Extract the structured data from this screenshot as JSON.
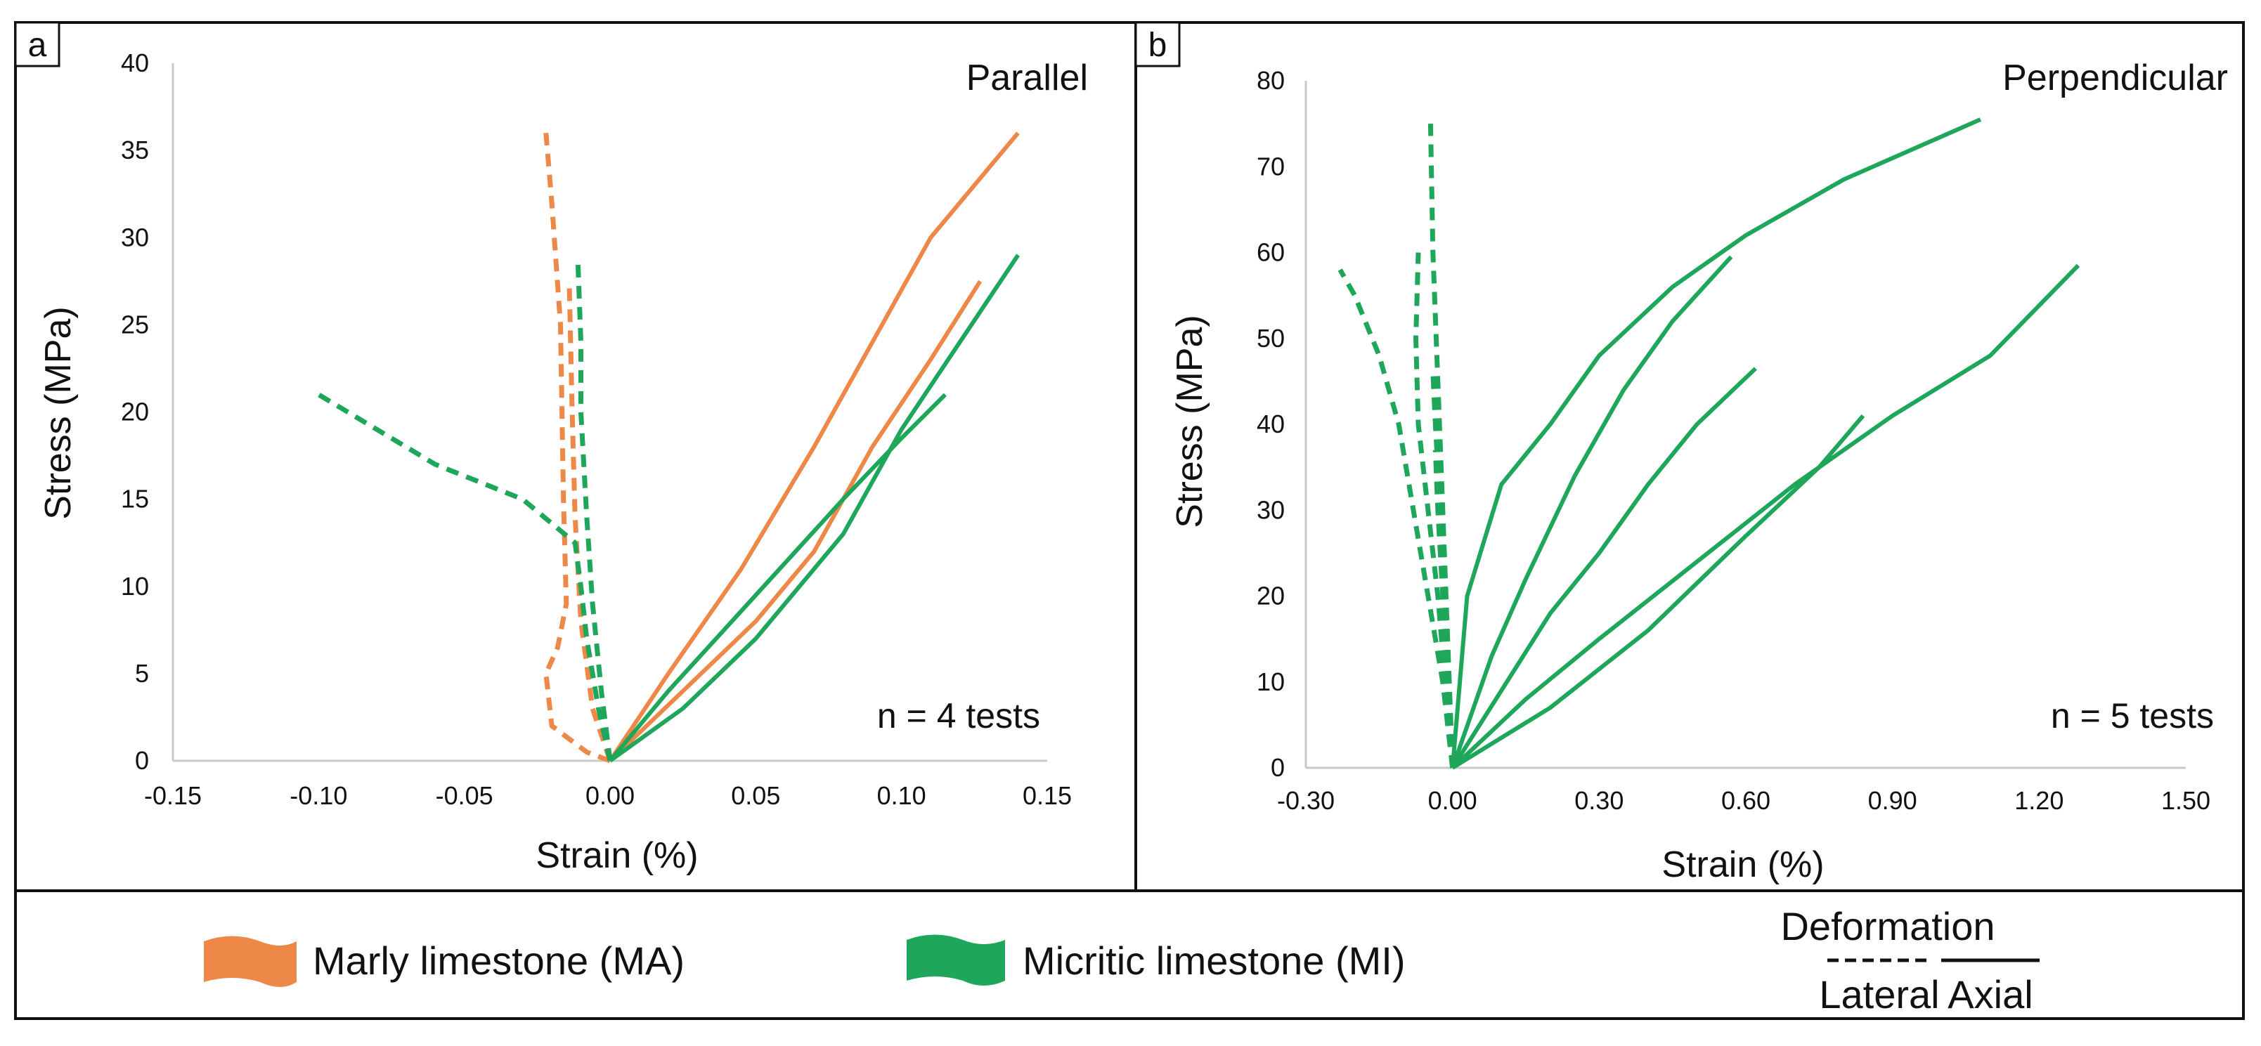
{
  "chart_data": [
    {
      "type": "line",
      "panel_label": "a",
      "title": "Parallel",
      "annotation": "n = 4 tests",
      "xlabel": "Strain (%)",
      "ylabel": "Stress (MPa)",
      "xlim": [
        -0.15,
        0.15
      ],
      "ylim": [
        0,
        40
      ],
      "xticks": [
        "-0.15",
        "-0.10",
        "-0.05",
        "0.00",
        "0.05",
        "0.10",
        "0.15"
      ],
      "yticks": [
        "0",
        "5",
        "10",
        "15",
        "20",
        "25",
        "30",
        "35",
        "40"
      ],
      "grid": false,
      "series": [
        {
          "name": "MA axial 1",
          "lithology": "MA",
          "deformation": "axial",
          "points": [
            [
              0,
              0
            ],
            [
              0.02,
              5
            ],
            [
              0.045,
              11
            ],
            [
              0.07,
              18
            ],
            [
              0.09,
              24
            ],
            [
              0.11,
              30
            ],
            [
              0.14,
              36
            ]
          ]
        },
        {
          "name": "MA axial 2",
          "lithology": "MA",
          "deformation": "axial",
          "points": [
            [
              0,
              0
            ],
            [
              0.025,
              4
            ],
            [
              0.05,
              8
            ],
            [
              0.07,
              12
            ],
            [
              0.09,
              18
            ],
            [
              0.11,
              23
            ],
            [
              0.127,
              27.5
            ]
          ]
        },
        {
          "name": "MA lateral 1",
          "lithology": "MA",
          "deformation": "lateral",
          "points": [
            [
              0,
              0
            ],
            [
              -0.008,
              0.5
            ],
            [
              -0.02,
              2
            ],
            [
              -0.022,
              5
            ],
            [
              -0.018,
              6.5
            ],
            [
              -0.015,
              9
            ],
            [
              -0.016,
              15
            ],
            [
              -0.017,
              25
            ],
            [
              -0.02,
              32
            ],
            [
              -0.022,
              36
            ]
          ]
        },
        {
          "name": "MA lateral 2",
          "lithology": "MA",
          "deformation": "lateral",
          "points": [
            [
              0,
              0
            ],
            [
              -0.006,
              3
            ],
            [
              -0.01,
              8
            ],
            [
              -0.012,
              14
            ],
            [
              -0.013,
              20
            ],
            [
              -0.014,
              27.5
            ]
          ]
        },
        {
          "name": "MI axial 1",
          "lithology": "MI",
          "deformation": "axial",
          "points": [
            [
              0,
              0
            ],
            [
              0.025,
              3
            ],
            [
              0.05,
              7
            ],
            [
              0.08,
              13
            ],
            [
              0.1,
              19
            ],
            [
              0.12,
              24
            ],
            [
              0.14,
              29
            ]
          ]
        },
        {
          "name": "MI axial 2",
          "lithology": "MI",
          "deformation": "axial",
          "points": [
            [
              0,
              0
            ],
            [
              0.02,
              4
            ],
            [
              0.05,
              9.5
            ],
            [
              0.08,
              15
            ],
            [
              0.1,
              18.5
            ],
            [
              0.115,
              21
            ]
          ]
        },
        {
          "name": "MI lateral 1",
          "lithology": "MI",
          "deformation": "lateral",
          "points": [
            [
              0,
              0
            ],
            [
              -0.004,
              3
            ],
            [
              -0.008,
              7
            ],
            [
              -0.01,
              10
            ],
            [
              -0.012,
              12.5
            ],
            [
              -0.03,
              15
            ],
            [
              -0.06,
              17
            ],
            [
              -0.1,
              21
            ]
          ]
        },
        {
          "name": "MI lateral 2",
          "lithology": "MI",
          "deformation": "lateral",
          "points": [
            [
              0,
              0
            ],
            [
              -0.003,
              4
            ],
            [
              -0.006,
              9
            ],
            [
              -0.008,
              14
            ],
            [
              -0.01,
              20
            ],
            [
              -0.01,
              24
            ],
            [
              -0.011,
              28.5
            ]
          ]
        }
      ]
    },
    {
      "type": "line",
      "panel_label": "b",
      "title": "Perpendicular",
      "annotation": "n = 5 tests",
      "xlabel": "Strain (%)",
      "ylabel": "Stress (MPa)",
      "xlim": [
        -0.3,
        1.5
      ],
      "ylim": [
        0,
        80
      ],
      "xticks": [
        "-0.30",
        "0.00",
        "0.30",
        "0.60",
        "0.90",
        "1.20",
        "1.50"
      ],
      "yticks": [
        "0",
        "10",
        "20",
        "30",
        "40",
        "50",
        "60",
        "70",
        "80"
      ],
      "grid": false,
      "series": [
        {
          "name": "MI axial 1",
          "lithology": "MI",
          "deformation": "axial",
          "points": [
            [
              0,
              0
            ],
            [
              0.03,
              20
            ],
            [
              0.1,
              33
            ],
            [
              0.2,
              40
            ],
            [
              0.3,
              48
            ],
            [
              0.45,
              56
            ],
            [
              0.6,
              62
            ],
            [
              0.8,
              68.5
            ],
            [
              1.08,
              75.5
            ]
          ]
        },
        {
          "name": "MI axial 2",
          "lithology": "MI",
          "deformation": "axial",
          "points": [
            [
              0,
              0
            ],
            [
              0.08,
              13
            ],
            [
              0.15,
              22
            ],
            [
              0.25,
              34
            ],
            [
              0.35,
              44
            ],
            [
              0.45,
              52
            ],
            [
              0.57,
              59.5
            ]
          ]
        },
        {
          "name": "MI axial 3",
          "lithology": "MI",
          "deformation": "axial",
          "points": [
            [
              0,
              0
            ],
            [
              0.1,
              9
            ],
            [
              0.2,
              18
            ],
            [
              0.3,
              25
            ],
            [
              0.4,
              33
            ],
            [
              0.5,
              40
            ],
            [
              0.62,
              46.5
            ]
          ]
        },
        {
          "name": "MI axial 4",
          "lithology": "MI",
          "deformation": "axial",
          "points": [
            [
              0,
              0
            ],
            [
              0.15,
              8
            ],
            [
              0.3,
              15
            ],
            [
              0.5,
              24
            ],
            [
              0.7,
              33
            ],
            [
              0.9,
              41
            ],
            [
              1.1,
              48
            ],
            [
              1.28,
              58.5
            ]
          ]
        },
        {
          "name": "MI axial 5",
          "lithology": "MI",
          "deformation": "axial",
          "points": [
            [
              0,
              0
            ],
            [
              0.2,
              7
            ],
            [
              0.4,
              16
            ],
            [
              0.6,
              27
            ],
            [
              0.75,
              35
            ],
            [
              0.84,
              41
            ]
          ]
        },
        {
          "name": "MI lateral 1",
          "lithology": "MI",
          "deformation": "lateral",
          "points": [
            [
              0,
              0
            ],
            [
              -0.02,
              10
            ],
            [
              -0.05,
              20
            ],
            [
              -0.08,
              30
            ],
            [
              -0.11,
              40
            ],
            [
              -0.15,
              48
            ],
            [
              -0.2,
              55
            ],
            [
              -0.23,
              58
            ]
          ]
        },
        {
          "name": "MI lateral 2",
          "lithology": "MI",
          "deformation": "lateral",
          "points": [
            [
              0,
              0
            ],
            [
              -0.015,
              10
            ],
            [
              -0.03,
              20
            ],
            [
              -0.05,
              30
            ],
            [
              -0.07,
              40
            ],
            [
              -0.075,
              50
            ],
            [
              -0.07,
              60
            ]
          ]
        },
        {
          "name": "MI lateral 3",
          "lithology": "MI",
          "deformation": "lateral",
          "points": [
            [
              0,
              0
            ],
            [
              -0.01,
              15
            ],
            [
              -0.02,
              30
            ],
            [
              -0.03,
              45
            ],
            [
              -0.04,
              60
            ],
            [
              -0.045,
              75
            ]
          ]
        },
        {
          "name": "MI lateral 4",
          "lithology": "MI",
          "deformation": "lateral",
          "points": [
            [
              0,
              0
            ],
            [
              -0.008,
              10
            ],
            [
              -0.015,
              20
            ],
            [
              -0.025,
              30
            ],
            [
              -0.035,
              40
            ],
            [
              -0.04,
              46
            ]
          ]
        },
        {
          "name": "MI lateral 5",
          "lithology": "MI",
          "deformation": "lateral",
          "points": [
            [
              0,
              0
            ],
            [
              -0.01,
              10
            ],
            [
              -0.02,
              20
            ],
            [
              -0.03,
              30
            ],
            [
              -0.035,
              37
            ]
          ]
        }
      ]
    }
  ],
  "colors": {
    "MA": "#ee8848",
    "MI": "#1ea65a"
  },
  "legend": {
    "ma_label": "Marly limestone (MA)",
    "mi_label": "Micritic limestone (MI)",
    "deformation_label": "Deformation",
    "lateral_label": "Lateral",
    "axial_label": "Axial"
  }
}
